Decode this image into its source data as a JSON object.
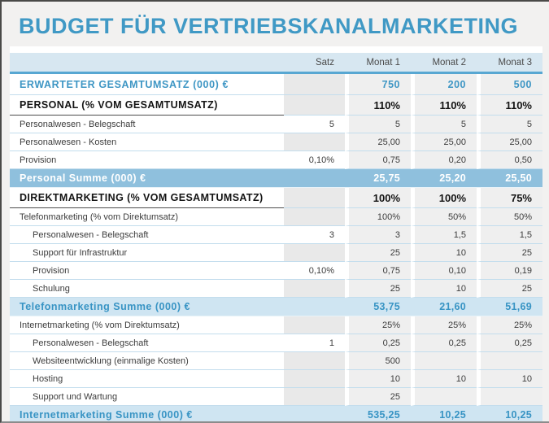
{
  "title": "BUDGET FÜR VERTRIEBSKANALMARKETING",
  "colors": {
    "title_blue": "#4099c5",
    "accent_blue_text": "#3e96c4",
    "header_band_bg": "#d7e7f1",
    "header_rule_blue": "#58a7d2",
    "total_dark_bg": "#8fc0dd",
    "total_light_bg": "#cfe5f2",
    "monat_cell_bg": "#efefef",
    "empty_satz_cell_bg": "#e9e9e9",
    "row_divider_blue": "#c3dded",
    "page_bg": "#f2f1f0"
  },
  "table": {
    "columns": [
      "",
      "Satz",
      "Monat 1",
      "Monat 2",
      "Monat 3"
    ],
    "rows": [
      {
        "type": "revenue",
        "label": "ERWARTETER GESAMTUMSATZ (000) €",
        "satz": "",
        "m1": "750",
        "m2": "200",
        "m3": "500"
      },
      {
        "type": "section",
        "label": "PERSONAL (% VOM GESAMTUMSATZ)",
        "satz": "",
        "m1": "110%",
        "m2": "110%",
        "m3": "110%"
      },
      {
        "type": "item",
        "label": "Personalwesen - Belegschaft",
        "satz": "5",
        "m1": "5",
        "m2": "5",
        "m3": "5"
      },
      {
        "type": "item",
        "label": "Personalwesen - Kosten",
        "satz": "",
        "m1": "25,00",
        "m2": "25,00",
        "m3": "25,00"
      },
      {
        "type": "item",
        "label": "Provision",
        "satz": "0,10%",
        "m1": "0,75",
        "m2": "0,20",
        "m3": "0,50"
      },
      {
        "type": "total-dark",
        "label": "Personal Summe (000) €",
        "satz": "",
        "m1": "25,75",
        "m2": "25,20",
        "m3": "25,50"
      },
      {
        "type": "section",
        "label": "DIREKTMARKETING (% VOM GESAMTUMSATZ)",
        "satz": "",
        "m1": "100%",
        "m2": "100%",
        "m3": "75%"
      },
      {
        "type": "item",
        "label": "Telefonmarketing (% vom Direktumsatz)",
        "satz": "",
        "m1": "100%",
        "m2": "50%",
        "m3": "50%"
      },
      {
        "type": "item-indent",
        "label": "Personalwesen - Belegschaft",
        "satz": "3",
        "m1": "3",
        "m2": "1,5",
        "m3": "1,5"
      },
      {
        "type": "item-indent",
        "label": "Support für Infrastruktur",
        "satz": "",
        "m1": "25",
        "m2": "10",
        "m3": "25"
      },
      {
        "type": "item-indent",
        "label": "Provision",
        "satz": "0,10%",
        "m1": "0,75",
        "m2": "0,10",
        "m3": "0,19"
      },
      {
        "type": "item-indent",
        "label": "Schulung",
        "satz": "",
        "m1": "25",
        "m2": "10",
        "m3": "25"
      },
      {
        "type": "total-light",
        "label": "Telefonmarketing Summe (000) €",
        "satz": "",
        "m1": "53,75",
        "m2": "21,60",
        "m3": "51,69"
      },
      {
        "type": "item",
        "label": "Internetmarketing (% vom Direktumsatz)",
        "satz": "",
        "m1": "25%",
        "m2": "25%",
        "m3": "25%"
      },
      {
        "type": "item-indent",
        "label": "Personalwesen - Belegschaft",
        "satz": "1",
        "m1": "0,25",
        "m2": "0,25",
        "m3": "0,25"
      },
      {
        "type": "item-indent",
        "label": "Websiteentwicklung (einmalige Kosten)",
        "satz": "",
        "m1": "500",
        "m2": "",
        "m3": ""
      },
      {
        "type": "item-indent",
        "label": "Hosting",
        "satz": "",
        "m1": "10",
        "m2": "10",
        "m3": "10"
      },
      {
        "type": "item-indent",
        "label": "Support und Wartung",
        "satz": "",
        "m1": "25",
        "m2": "",
        "m3": ""
      },
      {
        "type": "total-light",
        "label": "Internetmarketing Summe (000) €",
        "satz": "",
        "m1": "535,25",
        "m2": "10,25",
        "m3": "10,25"
      }
    ]
  }
}
